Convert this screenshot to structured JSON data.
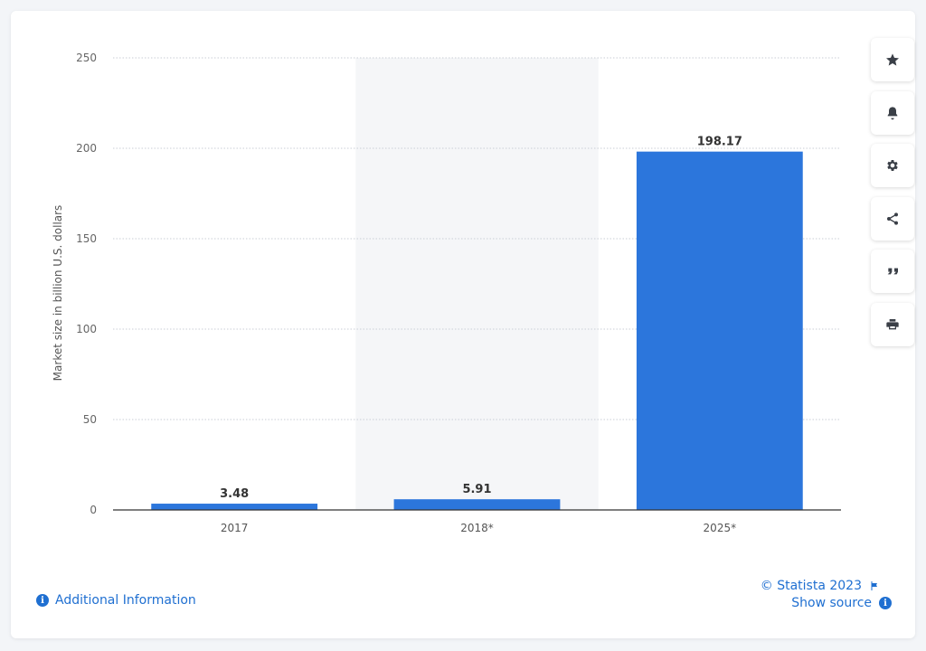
{
  "chart_data": {
    "type": "bar",
    "categories": [
      "2017",
      "2018*",
      "2025*"
    ],
    "values": [
      3.48,
      5.91,
      198.17
    ],
    "value_labels": [
      "3.48",
      "5.91",
      "198.17"
    ],
    "title": "",
    "xlabel": "",
    "ylabel": "Market size in billion U.S. dollars",
    "ylim": [
      0,
      250
    ],
    "yticks": [
      0,
      50,
      100,
      150,
      200,
      250
    ],
    "grid": true,
    "highlighted_category": "2018*",
    "bar_color": "#2c76dc"
  },
  "toolbar": {
    "icons": [
      "star-icon",
      "bell-icon",
      "gear-icon",
      "share-icon",
      "quote-icon",
      "print-icon"
    ]
  },
  "footer": {
    "additional_info": "Additional Information",
    "copyright": "© Statista 2023",
    "show_source": "Show source"
  },
  "colors": {
    "accent": "#1f6fd1",
    "highlight_band": "#f5f6f8"
  }
}
